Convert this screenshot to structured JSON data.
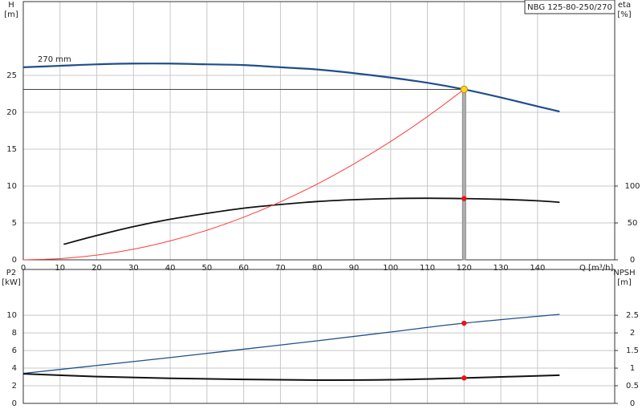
{
  "chart_data": [
    {
      "type": "line",
      "title": "NBG 125-80-250/270",
      "xlabel": "Q [m³/h]",
      "ylabel": "H",
      "yunit": "[m]",
      "y2label": "eta",
      "y2unit": "[%]",
      "xlim": [
        0,
        161
      ],
      "xticks": [
        0,
        10,
        20,
        30,
        40,
        50,
        60,
        70,
        80,
        90,
        100,
        110,
        120,
        130,
        140
      ],
      "ylim": [
        0,
        35
      ],
      "yticks": [
        0,
        5,
        10,
        15,
        20,
        25
      ],
      "y2lim": [
        0,
        350
      ],
      "y2ticks": [
        0,
        50,
        100
      ],
      "grid": true,
      "series": [
        {
          "name": "270 mm",
          "color": "#1f4e8c",
          "width": 2.2,
          "x": [
            0,
            10,
            20,
            30,
            40,
            50,
            60,
            70,
            80,
            90,
            100,
            110,
            120,
            130,
            140,
            146
          ],
          "values": [
            26.1,
            26.3,
            26.5,
            26.6,
            26.6,
            26.5,
            26.4,
            26.1,
            25.8,
            25.3,
            24.7,
            24.0,
            23.1,
            22.0,
            20.8,
            20.1
          ]
        },
        {
          "color": "#111111",
          "width": 1.8,
          "axis": "y2",
          "x": [
            11,
            20,
            30,
            40,
            50,
            60,
            70,
            80,
            90,
            100,
            110,
            120,
            130,
            140,
            146
          ],
          "values": [
            21,
            33,
            45,
            55,
            63,
            70,
            75,
            79,
            81.5,
            83,
            83.5,
            83,
            82,
            80,
            78
          ]
        },
        {
          "color": "#ff3b3b",
          "width": 1,
          "x": [
            0,
            10,
            20,
            30,
            40,
            50,
            60,
            70,
            80,
            90,
            100,
            110,
            120
          ],
          "values": [
            0,
            0.16,
            0.64,
            1.44,
            2.57,
            4.01,
            5.78,
            7.86,
            10.27,
            13.0,
            16.04,
            19.41,
            23.1
          ]
        }
      ],
      "duty_point": {
        "x": 120,
        "y": 23.1,
        "color": "#ffd21f"
      },
      "markers": [
        {
          "x": 120,
          "y": 83,
          "axis": "y2",
          "color": "#e8141b"
        }
      ]
    },
    {
      "type": "line",
      "ylabel": "P2",
      "yunit": "[kW]",
      "y2label": "NPSH",
      "y2unit": "[m]",
      "xlim": [
        0,
        161
      ],
      "xticks": [
        0,
        10,
        20,
        30,
        40,
        50,
        60,
        70,
        80,
        90,
        100,
        110,
        120,
        130,
        140
      ],
      "ylim": [
        0,
        15.2
      ],
      "yticks": [
        0,
        2,
        4,
        6,
        8,
        10
      ],
      "y2lim": [
        0,
        3.8
      ],
      "y2ticks": [
        0,
        0.5,
        1,
        1.5,
        2,
        2.5
      ],
      "grid": true,
      "series": [
        {
          "color": "#1f4e8c",
          "width": 1.3,
          "x": [
            0,
            20,
            40,
            60,
            80,
            100,
            120,
            146
          ],
          "values": [
            3.4,
            4.3,
            5.2,
            6.15,
            7.1,
            8.1,
            9.1,
            10.1
          ]
        },
        {
          "color": "#111111",
          "width": 2,
          "axis": "y2",
          "x": [
            0,
            20,
            40,
            60,
            80,
            100,
            120,
            146
          ],
          "values": [
            0.84,
            0.76,
            0.71,
            0.68,
            0.66,
            0.67,
            0.72,
            0.8
          ]
        }
      ],
      "markers": [
        {
          "x": 120,
          "y": 9.1,
          "color": "#e8141b"
        },
        {
          "x": 120,
          "y": 0.72,
          "axis": "y2",
          "color": "#e8141b"
        }
      ]
    }
  ]
}
